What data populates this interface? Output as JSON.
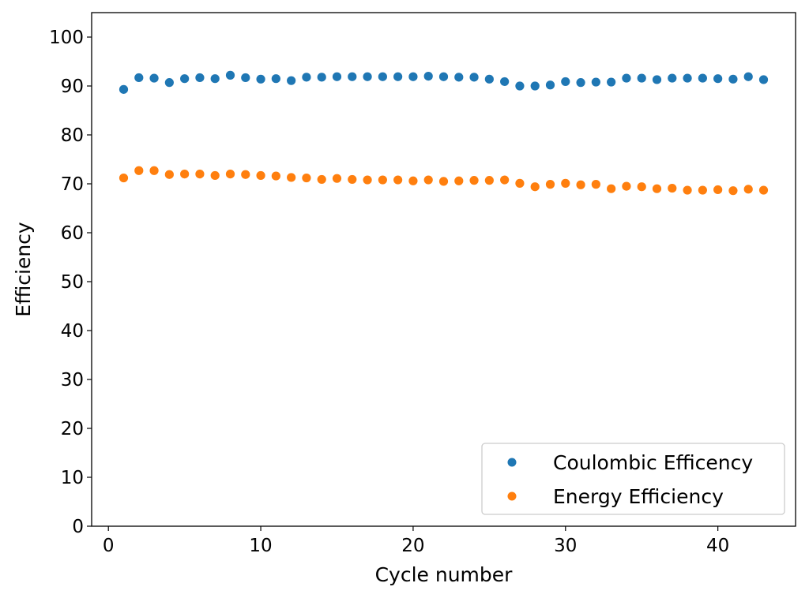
{
  "chart_data": {
    "type": "scatter",
    "title": "",
    "xlabel": "Cycle number",
    "ylabel": "Efficiency",
    "xlim": [
      -1.1,
      45.1
    ],
    "ylim": [
      0,
      105
    ],
    "xticks": [
      0,
      10,
      20,
      30,
      40
    ],
    "yticks": [
      0,
      10,
      20,
      30,
      40,
      50,
      60,
      70,
      80,
      90,
      100
    ],
    "grid": false,
    "legend_position": "lower-right",
    "x": [
      1,
      2,
      3,
      4,
      5,
      6,
      7,
      8,
      9,
      10,
      11,
      12,
      13,
      14,
      15,
      16,
      17,
      18,
      19,
      20,
      21,
      22,
      23,
      24,
      25,
      26,
      27,
      28,
      29,
      30,
      31,
      32,
      33,
      34,
      35,
      36,
      37,
      38,
      39,
      40,
      41,
      42,
      43
    ],
    "series": [
      {
        "name": "Coulombic Efficency",
        "color": "#1f77b4",
        "values": [
          89.3,
          91.7,
          91.6,
          90.7,
          91.5,
          91.7,
          91.5,
          92.2,
          91.7,
          91.4,
          91.5,
          91.1,
          91.8,
          91.8,
          91.9,
          91.9,
          91.9,
          91.9,
          91.9,
          91.9,
          92.0,
          91.9,
          91.8,
          91.8,
          91.4,
          90.9,
          90.0,
          90.0,
          90.2,
          90.9,
          90.7,
          90.8,
          90.8,
          91.6,
          91.6,
          91.3,
          91.6,
          91.6,
          91.6,
          91.5,
          91.4,
          91.9,
          91.3
        ]
      },
      {
        "name": "Energy Efficiency",
        "color": "#ff7f0e",
        "values": [
          71.2,
          72.7,
          72.7,
          71.9,
          72.0,
          72.0,
          71.7,
          72.0,
          71.9,
          71.7,
          71.6,
          71.3,
          71.2,
          70.9,
          71.1,
          70.9,
          70.8,
          70.8,
          70.8,
          70.6,
          70.8,
          70.5,
          70.6,
          70.7,
          70.7,
          70.8,
          70.1,
          69.4,
          69.9,
          70.1,
          69.8,
          69.9,
          69.0,
          69.5,
          69.4,
          69.0,
          69.1,
          68.7,
          68.7,
          68.8,
          68.6,
          68.9,
          68.7
        ]
      }
    ]
  }
}
